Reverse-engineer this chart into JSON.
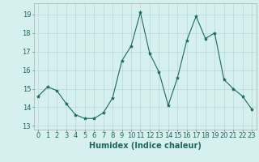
{
  "x": [
    0,
    1,
    2,
    3,
    4,
    5,
    6,
    7,
    8,
    9,
    10,
    11,
    12,
    13,
    14,
    15,
    16,
    17,
    18,
    19,
    20,
    21,
    22,
    23
  ],
  "y": [
    14.6,
    15.1,
    14.9,
    14.2,
    13.6,
    13.4,
    13.4,
    13.7,
    14.5,
    16.5,
    17.3,
    19.1,
    16.9,
    15.9,
    14.1,
    15.6,
    17.6,
    18.9,
    17.7,
    18.0,
    15.5,
    15.0,
    14.6,
    13.9
  ],
  "line_color": "#1a6b5a",
  "marker": "*",
  "marker_size": 3,
  "bg_color": "#d6f0f0",
  "grid_color": "#b8d8d8",
  "xlabel": "Humidex (Indice chaleur)",
  "ylim": [
    12.8,
    19.6
  ],
  "xlim": [
    -0.5,
    23.5
  ],
  "yticks": [
    13,
    14,
    15,
    16,
    17,
    18,
    19
  ],
  "xticks": [
    0,
    1,
    2,
    3,
    4,
    5,
    6,
    7,
    8,
    9,
    10,
    11,
    12,
    13,
    14,
    15,
    16,
    17,
    18,
    19,
    20,
    21,
    22,
    23
  ],
  "xlabel_fontsize": 7,
  "tick_fontsize": 6,
  "tick_color": "#1a6b5a",
  "spine_color": "#aaaaaa"
}
